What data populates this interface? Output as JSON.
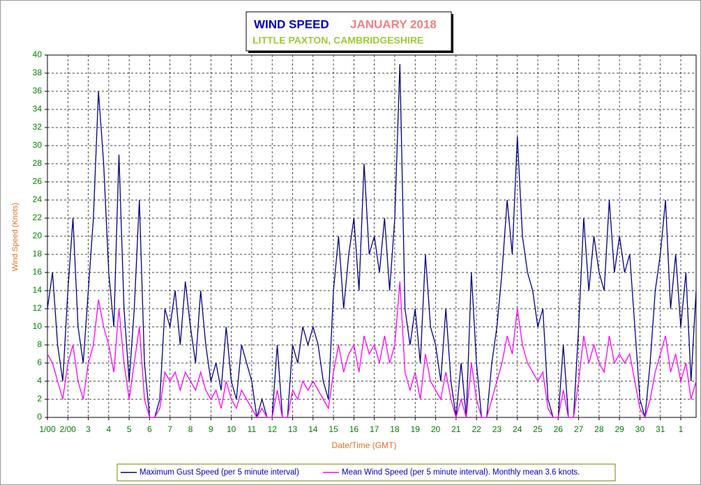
{
  "chart_data": {
    "type": "line",
    "title": "WIND SPEED",
    "period": "JANUARY 2018",
    "location": "LITTLE PAXTON, CAMBRIDGESHIRE",
    "xlabel": "Date/Time (GMT)",
    "ylabel": "Wind Speed (Knots)",
    "x": [
      0,
      0.25,
      0.5,
      0.75,
      1,
      1.25,
      1.5,
      1.75,
      2,
      2.25,
      2.5,
      2.75,
      3,
      3.25,
      3.5,
      3.75,
      4,
      4.25,
      4.5,
      4.75,
      5,
      5.25,
      5.5,
      5.75,
      6,
      6.25,
      6.5,
      6.75,
      7,
      7.25,
      7.5,
      7.75,
      8,
      8.25,
      8.5,
      8.75,
      9,
      9.25,
      9.5,
      9.75,
      10,
      10.25,
      10.5,
      10.75,
      11,
      11.25,
      11.5,
      11.75,
      12,
      12.25,
      12.5,
      12.75,
      13,
      13.25,
      13.5,
      13.75,
      14,
      14.25,
      14.5,
      14.75,
      15,
      15.25,
      15.5,
      15.75,
      16,
      16.25,
      16.5,
      16.75,
      17,
      17.25,
      17.5,
      17.75,
      18,
      18.25,
      18.5,
      18.75,
      19,
      19.25,
      19.5,
      19.75,
      20,
      20.25,
      20.5,
      20.75,
      21,
      21.25,
      21.5,
      21.75,
      22,
      22.25,
      22.5,
      22.75,
      23,
      23.25,
      23.5,
      23.75,
      24,
      24.25,
      24.5,
      24.75,
      25,
      25.25,
      25.5,
      25.75,
      26,
      26.25,
      26.5,
      26.75,
      27,
      27.25,
      27.5,
      27.75,
      28,
      28.25,
      28.5,
      28.75,
      29,
      29.25,
      29.5,
      29.75,
      30,
      30.25,
      30.5,
      30.75,
      31,
      31.25,
      31.5,
      31.75
    ],
    "series": [
      {
        "name": "Maximum Gust Speed (per 5 minute interval)",
        "color": "#000080",
        "values": [
          12,
          16,
          8,
          4,
          14,
          22,
          10,
          6,
          14,
          22,
          36,
          28,
          16,
          10,
          29,
          12,
          4,
          12,
          24,
          6,
          0,
          0,
          2,
          12,
          10,
          14,
          8,
          15,
          10,
          6,
          14,
          8,
          4,
          6,
          3,
          10,
          4,
          2,
          8,
          6,
          4,
          0,
          2,
          0,
          0,
          8,
          0,
          0,
          8,
          6,
          10,
          8,
          10,
          8,
          4,
          2,
          14,
          20,
          12,
          18,
          22,
          14,
          28,
          18,
          20,
          16,
          22,
          14,
          22,
          39,
          12,
          8,
          12,
          6,
          18,
          10,
          8,
          4,
          12,
          4,
          0,
          6,
          0,
          16,
          6,
          0,
          0,
          6,
          10,
          16,
          24,
          18,
          31,
          20,
          16,
          14,
          10,
          12,
          2,
          0,
          0,
          8,
          0,
          0,
          10,
          22,
          14,
          20,
          16,
          14,
          24,
          16,
          20,
          16,
          18,
          10,
          2,
          0,
          6,
          14,
          18,
          24,
          12,
          18,
          10,
          16,
          4,
          14
        ]
      },
      {
        "name": "Mean Wind Speed (per 5 minute interval). Monthly mean 3.6 knots.",
        "color": "#ff00ff",
        "values": [
          7,
          6,
          4,
          2,
          6,
          8,
          4,
          2,
          6,
          8,
          13,
          10,
          8,
          5,
          12,
          6,
          2,
          6,
          10,
          2,
          0,
          0,
          1,
          5,
          4,
          5,
          3,
          5,
          4,
          3,
          5,
          3,
          2,
          3,
          1,
          4,
          2,
          1,
          3,
          2,
          1,
          0,
          1,
          0,
          0,
          3,
          0,
          0,
          3,
          2,
          4,
          3,
          4,
          3,
          2,
          1,
          5,
          8,
          5,
          7,
          8,
          5,
          9,
          7,
          8,
          6,
          9,
          6,
          8,
          15,
          5,
          3,
          5,
          2,
          7,
          4,
          3,
          2,
          5,
          2,
          0,
          2,
          0,
          6,
          2,
          0,
          0,
          2,
          4,
          6,
          9,
          7,
          12,
          8,
          6,
          5,
          4,
          5,
          1,
          0,
          0,
          3,
          0,
          0,
          4,
          9,
          6,
          8,
          6,
          5,
          9,
          6,
          7,
          6,
          7,
          4,
          1,
          0,
          2,
          5,
          7,
          9,
          5,
          7,
          4,
          6,
          2,
          4
        ]
      }
    ],
    "xlim": [
      0,
      31.75
    ],
    "xticks": [
      {
        "value": 0,
        "label": "1/00"
      },
      {
        "value": 1,
        "label": "2/00"
      },
      {
        "value": 2,
        "label": "3"
      },
      {
        "value": 3,
        "label": "4"
      },
      {
        "value": 4,
        "label": "5"
      },
      {
        "value": 5,
        "label": "6"
      },
      {
        "value": 6,
        "label": "7"
      },
      {
        "value": 7,
        "label": "8"
      },
      {
        "value": 8,
        "label": "9"
      },
      {
        "value": 9,
        "label": "10"
      },
      {
        "value": 10,
        "label": "11"
      },
      {
        "value": 11,
        "label": "12"
      },
      {
        "value": 12,
        "label": "13"
      },
      {
        "value": 13,
        "label": "14"
      },
      {
        "value": 14,
        "label": "15"
      },
      {
        "value": 15,
        "label": "16"
      },
      {
        "value": 16,
        "label": "17"
      },
      {
        "value": 17,
        "label": "18"
      },
      {
        "value": 18,
        "label": "19"
      },
      {
        "value": 19,
        "label": "20"
      },
      {
        "value": 20,
        "label": "21"
      },
      {
        "value": 21,
        "label": "22"
      },
      {
        "value": 22,
        "label": "23"
      },
      {
        "value": 23,
        "label": "24"
      },
      {
        "value": 24,
        "label": "25"
      },
      {
        "value": 25,
        "label": "26"
      },
      {
        "value": 26,
        "label": "27"
      },
      {
        "value": 27,
        "label": "28"
      },
      {
        "value": 28,
        "label": "29"
      },
      {
        "value": 29,
        "label": "30"
      },
      {
        "value": 30,
        "label": "31"
      },
      {
        "value": 31,
        "label": "1"
      }
    ],
    "ylim": [
      0,
      40
    ],
    "yticks": [
      0,
      2,
      4,
      6,
      8,
      10,
      12,
      14,
      16,
      18,
      20,
      22,
      24,
      26,
      28,
      30,
      32,
      34,
      36,
      38,
      40
    ],
    "grid": true
  }
}
